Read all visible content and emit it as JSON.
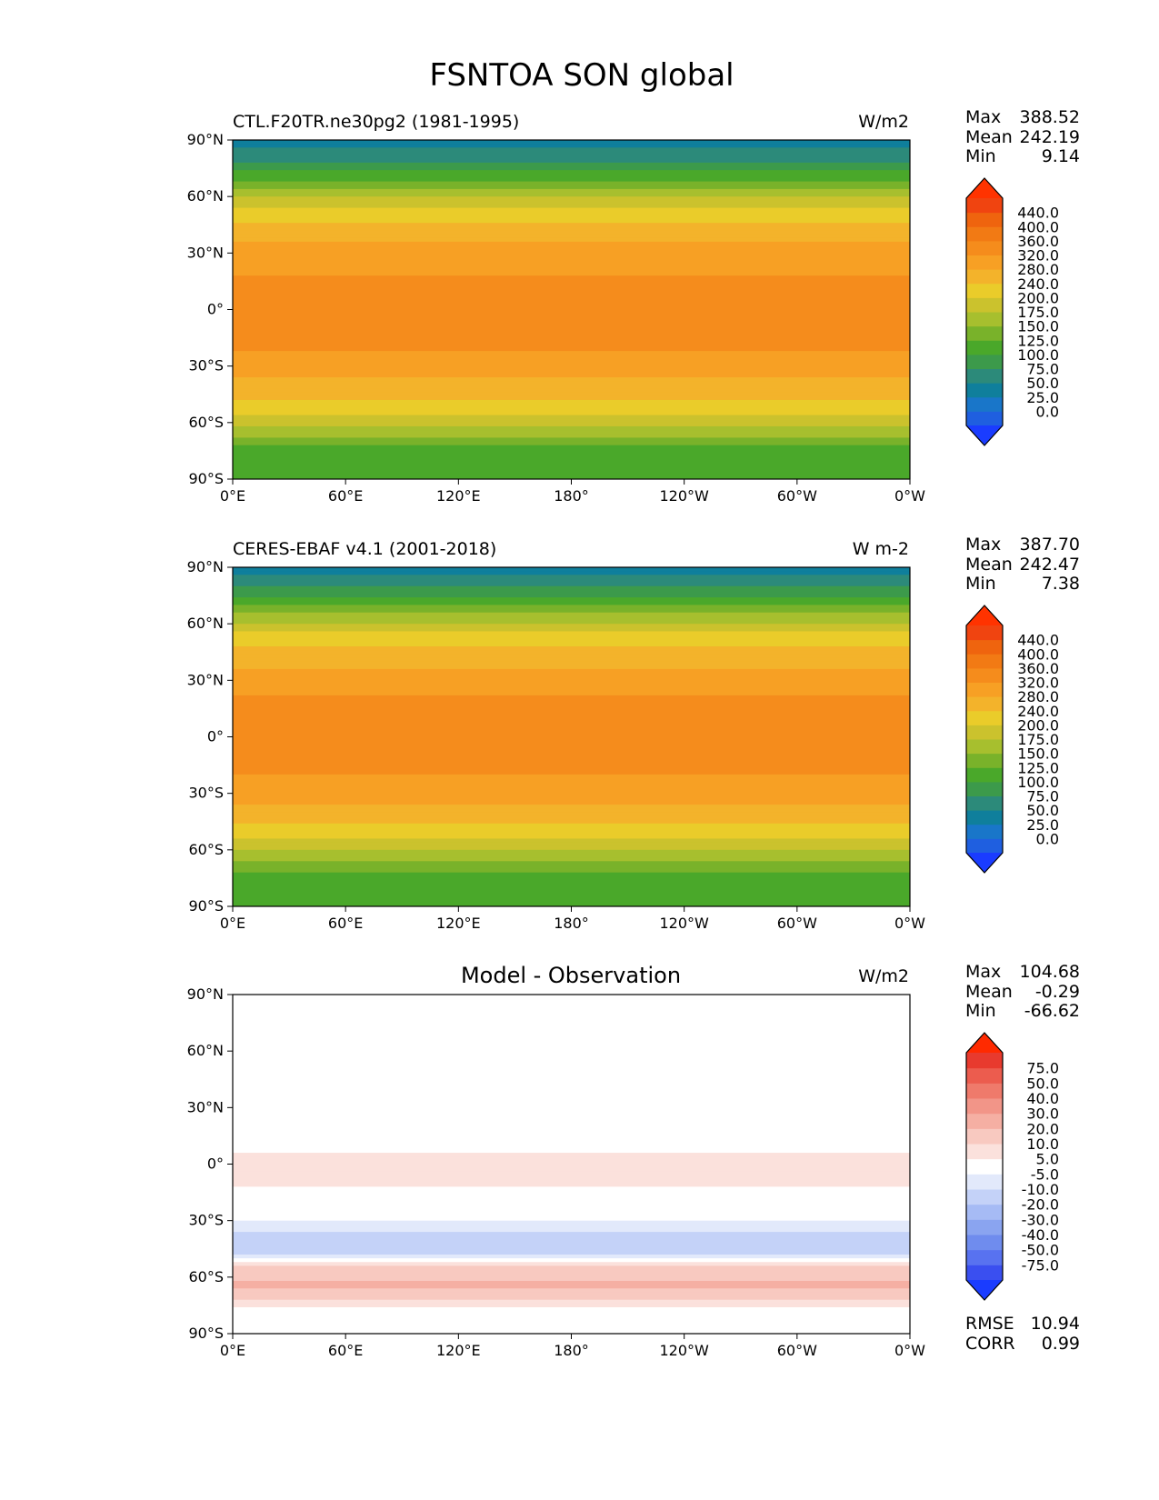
{
  "figure": {
    "title": "FSNTOA SON global"
  },
  "axes": {
    "lat_ticks": [
      "90°N",
      "60°N",
      "30°N",
      "0°",
      "30°S",
      "60°S",
      "90°S"
    ],
    "lon_ticks": [
      "0°E",
      "60°E",
      "120°E",
      "180°",
      "120°W",
      "60°W",
      "0°W"
    ]
  },
  "stat_labels": {
    "max": "Max",
    "mean": "Mean",
    "min": "Min",
    "rmse": "RMSE",
    "corr": "CORR"
  },
  "colors": {
    "abs_levels": [
      "#1f5fe0",
      "#1976c9",
      "#0f7f9c",
      "#2c8a7a",
      "#3c9a4b",
      "#4aa82a",
      "#79b22a",
      "#a7bf2e",
      "#cbc22d",
      "#eacc2a",
      "#f3b32b",
      "#f7a024",
      "#f58c1c",
      "#f27a14",
      "#ef640e",
      "#f04410"
    ],
    "abs_low_extend": "#1a3cff",
    "abs_high_extend": "#ff3300",
    "diff_levels": [
      "#3a4ff0",
      "#5872f0",
      "#6f8cee",
      "#8aa4f0",
      "#a6bbf5",
      "#c4d2f8",
      "#e2e9fb",
      "#ffffff",
      "#fbe1dc",
      "#f8c9c0",
      "#f5afa3",
      "#f29588",
      "#ef7a6b",
      "#ec5c4e",
      "#e83a2e"
    ],
    "diff_low_extend": "#1a3cff",
    "diff_high_extend": "#ff2a00",
    "coastline": "#000000"
  },
  "chart_data": [
    {
      "type": "heatmap",
      "title": "CTL.F20TR.ne30pg2 (1981-1995)",
      "units": "W/m2",
      "stats": {
        "max": "388.52",
        "mean": "242.19",
        "min": "9.14"
      },
      "colorbar_levels": [
        "0.0",
        "25.0",
        "50.0",
        "75.0",
        "100.0",
        "125.0",
        "150.0",
        "175.0",
        "200.0",
        "240.0",
        "280.0",
        "320.0",
        "360.0",
        "400.0",
        "440.0"
      ],
      "colorbar_extend": "both",
      "x_range": [
        "0°E",
        "0°W"
      ],
      "y_range": [
        "90°S",
        "90°N"
      ],
      "zonal_profile": {
        "lat": [
          -90,
          -75,
          -60,
          -45,
          -30,
          -15,
          0,
          15,
          30,
          45,
          60,
          75,
          90
        ],
        "value": [
          100,
          115,
          185,
          250,
          305,
          330,
          335,
          325,
          300,
          245,
          175,
          90,
          30
        ]
      }
    },
    {
      "type": "heatmap",
      "title": "CERES-EBAF v4.1 (2001-2018)",
      "units": "W m-2",
      "stats": {
        "max": "387.70",
        "mean": "242.47",
        "min": "7.38"
      },
      "colorbar_levels": [
        "0.0",
        "25.0",
        "50.0",
        "75.0",
        "100.0",
        "125.0",
        "150.0",
        "175.0",
        "200.0",
        "240.0",
        "280.0",
        "320.0",
        "360.0",
        "400.0",
        "440.0"
      ],
      "colorbar_extend": "both",
      "x_range": [
        "0°E",
        "0°W"
      ],
      "y_range": [
        "90°S",
        "90°N"
      ],
      "zonal_profile": {
        "lat": [
          -90,
          -75,
          -60,
          -45,
          -30,
          -15,
          0,
          15,
          30,
          45,
          60,
          75,
          90
        ],
        "value": [
          100,
          110,
          175,
          245,
          300,
          330,
          338,
          330,
          305,
          250,
          180,
          95,
          30
        ]
      }
    },
    {
      "type": "heatmap",
      "title": "Model - Observation",
      "units": "W/m2",
      "stats": {
        "max": "104.68",
        "mean": "-0.29",
        "min": "-66.62"
      },
      "rmse": "10.94",
      "corr": "0.99",
      "colorbar_levels": [
        "-75.0",
        "-50.0",
        "-40.0",
        "-30.0",
        "-20.0",
        "-10.0",
        "-5.0",
        "5.0",
        "10.0",
        "20.0",
        "30.0",
        "40.0",
        "50.0",
        "75.0"
      ],
      "colorbar_extend": "both",
      "x_range": [
        "0°E",
        "0°W"
      ],
      "y_range": [
        "90°S",
        "90°N"
      ],
      "zonal_profile": {
        "lat": [
          -90,
          -75,
          -65,
          -55,
          -45,
          -35,
          -20,
          -5,
          5,
          20,
          35,
          50,
          65,
          80,
          90
        ],
        "value": [
          0,
          5,
          22,
          12,
          -20,
          -8,
          2,
          8,
          6,
          -4,
          3,
          -2,
          0,
          -1,
          0
        ]
      }
    }
  ]
}
